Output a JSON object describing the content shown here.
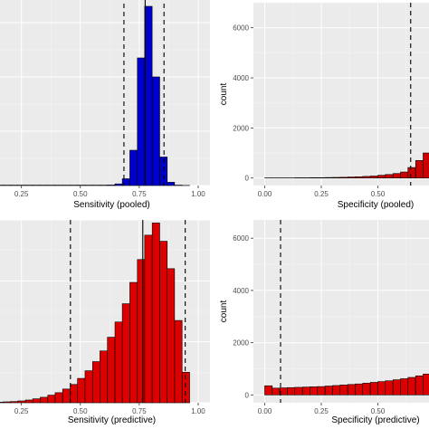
{
  "chart_data": [
    {
      "type": "bar",
      "panel": "top-left",
      "xlabel": "Sensitivity (pooled)",
      "ylabel": "",
      "xlim": [
        0.14,
        1.05
      ],
      "ylim": [
        0,
        7000
      ],
      "xticks": [
        0.25,
        0.5,
        0.75,
        1.0
      ],
      "xtick_labels": [
        "0.25",
        "0.50",
        "0.75",
        "1.00"
      ],
      "yticks": [],
      "ytick_labels": [],
      "fill_color": "#0000cc",
      "bin_width": 0.0317,
      "x": [
        0.14,
        0.172,
        0.203,
        0.235,
        0.267,
        0.298,
        0.33,
        0.362,
        0.393,
        0.425,
        0.457,
        0.488,
        0.52,
        0.552,
        0.583,
        0.615,
        0.647,
        0.678,
        0.71,
        0.742,
        0.773,
        0.805,
        0.837,
        0.868,
        0.9,
        0.932,
        0.963
      ],
      "values": [
        15,
        15,
        15,
        15,
        15,
        15,
        15,
        15,
        15,
        15,
        15,
        15,
        15,
        15,
        15,
        20,
        60,
        250,
        1300,
        4700,
        6600,
        4000,
        1050,
        120,
        15,
        5,
        0
      ],
      "vlines": [
        {
          "x": 0.685,
          "style": "dashed"
        },
        {
          "x": 0.775,
          "style": "solid"
        },
        {
          "x": 0.855,
          "style": "dashed"
        }
      ],
      "grid": true
    },
    {
      "type": "bar",
      "panel": "top-right",
      "xlabel": "Specificity (pooled)",
      "ylabel": "count",
      "xlim": [
        -0.05,
        0.75
      ],
      "ylim": [
        -300,
        7000
      ],
      "xticks": [
        0.0,
        0.25,
        0.5
      ],
      "xtick_labels": [
        "0.00",
        "0.25",
        "0.50"
      ],
      "yticks": [
        0,
        2000,
        4000,
        6000
      ],
      "ytick_labels": [
        "0",
        "2000",
        "4000",
        "6000"
      ],
      "fill_color": "#cc0000",
      "bin_width": 0.0333,
      "x": [
        0.0,
        0.033,
        0.067,
        0.1,
        0.133,
        0.167,
        0.2,
        0.233,
        0.267,
        0.3,
        0.333,
        0.367,
        0.4,
        0.433,
        0.467,
        0.5,
        0.533,
        0.567,
        0.6,
        0.633,
        0.667,
        0.7
      ],
      "values": [
        5,
        5,
        5,
        5,
        10,
        10,
        15,
        15,
        20,
        25,
        30,
        40,
        50,
        65,
        80,
        110,
        140,
        180,
        240,
        420,
        700,
        1000
      ],
      "vlines": [
        {
          "x": 0.645,
          "style": "dashed"
        }
      ],
      "grid": true
    },
    {
      "type": "bar",
      "panel": "bottom-left",
      "xlabel": "Sensitivity (predictive)",
      "ylabel": "",
      "xlim": [
        0.14,
        1.05
      ],
      "ylim": [
        0,
        6000
      ],
      "xticks": [
        0.25,
        0.5,
        0.75,
        1.0
      ],
      "xtick_labels": [
        "0.25",
        "0.50",
        "0.75",
        "1.00"
      ],
      "yticks": [],
      "ytick_labels": [],
      "fill_color": "#dd0000",
      "bin_width": 0.0317,
      "x": [
        0.14,
        0.172,
        0.203,
        0.235,
        0.267,
        0.298,
        0.33,
        0.362,
        0.393,
        0.425,
        0.457,
        0.488,
        0.52,
        0.552,
        0.583,
        0.615,
        0.647,
        0.678,
        0.71,
        0.742,
        0.773,
        0.805,
        0.837,
        0.868,
        0.9,
        0.932
      ],
      "values": [
        20,
        30,
        40,
        60,
        90,
        130,
        180,
        250,
        330,
        450,
        600,
        800,
        1050,
        1350,
        1700,
        2150,
        2650,
        3250,
        3950,
        4700,
        5500,
        5900,
        5300,
        4400,
        2700,
        1000
      ],
      "vlines": [
        {
          "x": 0.458,
          "style": "dashed"
        },
        {
          "x": 0.765,
          "style": "solid"
        },
        {
          "x": 0.945,
          "style": "dashed"
        }
      ],
      "grid": true
    },
    {
      "type": "bar",
      "panel": "bottom-right",
      "xlabel": "Specificity (predictive)",
      "ylabel": "count",
      "xlim": [
        -0.05,
        0.75
      ],
      "ylim": [
        -300,
        6700
      ],
      "xticks": [
        0.0,
        0.25,
        0.5
      ],
      "xtick_labels": [
        "0.00",
        "0.25",
        "0.50"
      ],
      "yticks": [
        0,
        2000,
        4000,
        6000
      ],
      "ytick_labels": [
        "0",
        "2000",
        "4000",
        "6000"
      ],
      "fill_color": "#dd0000",
      "bin_width": 0.0333,
      "x": [
        0.0,
        0.033,
        0.067,
        0.1,
        0.133,
        0.167,
        0.2,
        0.233,
        0.267,
        0.3,
        0.333,
        0.367,
        0.4,
        0.433,
        0.467,
        0.5,
        0.533,
        0.567,
        0.6,
        0.633,
        0.667,
        0.7
      ],
      "values": [
        350,
        260,
        270,
        280,
        290,
        300,
        310,
        320,
        340,
        360,
        380,
        400,
        420,
        450,
        480,
        510,
        540,
        580,
        620,
        670,
        730,
        800
      ],
      "vlines": [
        {
          "x": 0.07,
          "style": "dashed"
        }
      ],
      "grid": true
    }
  ]
}
